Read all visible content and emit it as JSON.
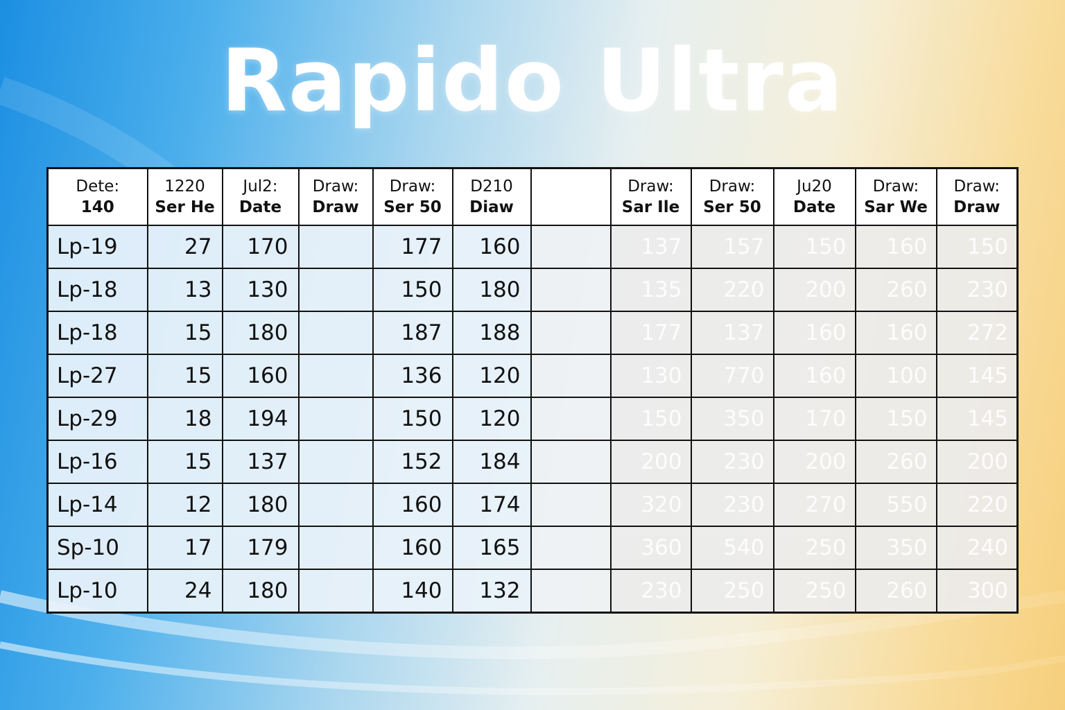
{
  "title": "Rapido Ultra",
  "headers": [
    {
      "line1": "Dete:",
      "line2": "140"
    },
    {
      "line1": "1220",
      "line2": "Ser He"
    },
    {
      "line1": "Jul2:",
      "line2": "Date"
    },
    {
      "line1": "Draw:",
      "line2": "Draw"
    },
    {
      "line1": "Draw:",
      "line2": "Ser 50"
    },
    {
      "line1": "D210",
      "line2": "Diaw"
    },
    {
      "line1": "",
      "line2": ""
    },
    {
      "line1": "Draw:",
      "line2": "Sar Ile"
    },
    {
      "line1": "Draw:",
      "line2": "Ser 50"
    },
    {
      "line1": "Ju20",
      "line2": "Date"
    },
    {
      "line1": "Draw:",
      "line2": "Sar We"
    },
    {
      "line1": "Draw:",
      "line2": "Draw"
    }
  ],
  "rows": [
    [
      "Lp-19",
      "27",
      "170",
      "",
      "177",
      "160",
      "",
      "137",
      "157",
      "150",
      "160",
      "150"
    ],
    [
      "Lp-18",
      "13",
      "130",
      "",
      "150",
      "180",
      "",
      "135",
      "220",
      "200",
      "260",
      "230"
    ],
    [
      "Lp-18",
      "15",
      "180",
      "",
      "187",
      "188",
      "",
      "177",
      "137",
      "160",
      "160",
      "272"
    ],
    [
      "Lp-27",
      "15",
      "160",
      "",
      "136",
      "120",
      "",
      "130",
      "770",
      "160",
      "100",
      "145"
    ],
    [
      "Lp-29",
      "18",
      "194",
      "",
      "150",
      "120",
      "",
      "150",
      "350",
      "170",
      "150",
      "145"
    ],
    [
      "Lp-16",
      "15",
      "137",
      "",
      "152",
      "184",
      "",
      "200",
      "230",
      "200",
      "260",
      "200"
    ],
    [
      "Lp-14",
      "12",
      "180",
      "",
      "160",
      "174",
      "",
      "320",
      "230",
      "270",
      "550",
      "220"
    ],
    [
      "Sp-10",
      "17",
      "179",
      "",
      "160",
      "165",
      "",
      "360",
      "540",
      "250",
      "350",
      "240"
    ],
    [
      "Lp-10",
      "24",
      "180",
      "",
      "140",
      "132",
      "",
      "230",
      "250",
      "250",
      "260",
      "300"
    ]
  ]
}
